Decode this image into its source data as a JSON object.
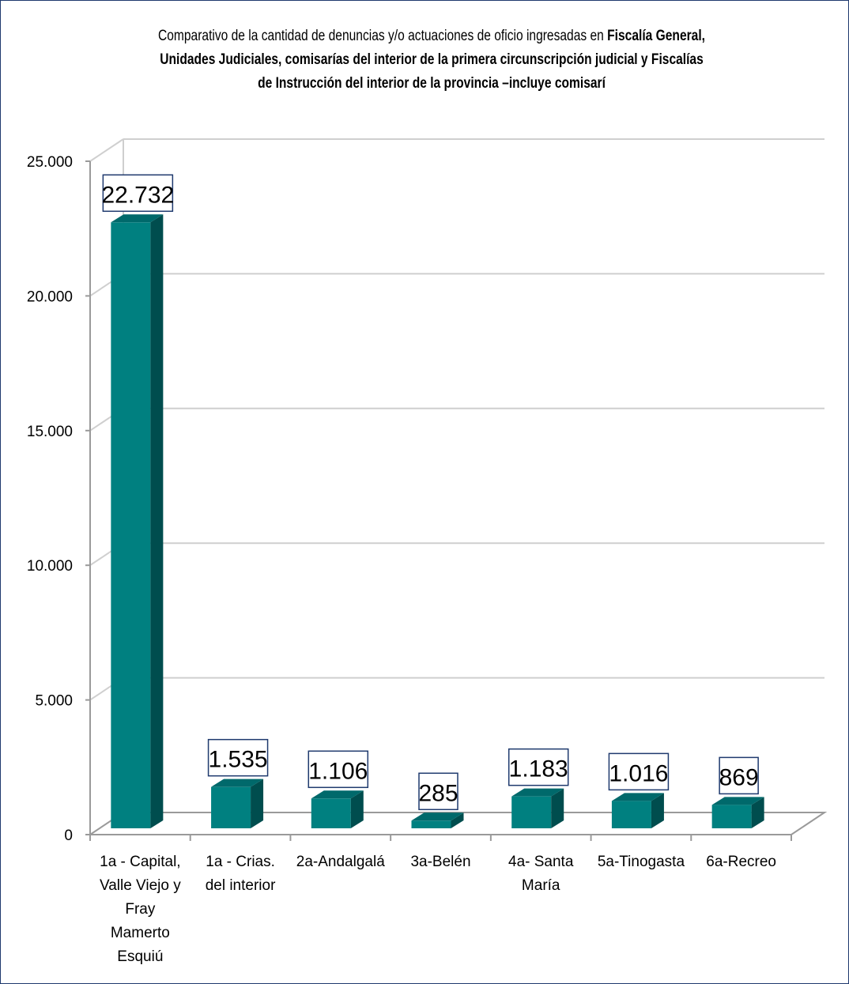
{
  "chart_data": {
    "type": "bar",
    "title_parts": [
      {
        "text": "Comparativo de la cantidad de denuncias y/o actuaciones de oficio ingresadas en ",
        "bold": false
      },
      {
        "text": "Fiscalía General, Unidades Judiciales, comisarías del interior de la primera circunscripción judicial y Fiscalías de Instrucción del interior de la provincia –incluye comisarí",
        "bold": true
      }
    ],
    "categories": [
      [
        "1a - Capital,",
        "Valle Viejo y",
        "Fray",
        "Mamerto",
        "Esquiú"
      ],
      [
        "1a - Crias.",
        "del interior"
      ],
      [
        "2a-Andalgalá"
      ],
      [
        "3a-Belén"
      ],
      [
        "4a- Santa",
        "María"
      ],
      [
        "5a-Tinogasta"
      ],
      [
        "6a-Recreo"
      ]
    ],
    "values": [
      22732,
      1535,
      1106,
      285,
      1183,
      1016,
      869
    ],
    "value_labels": [
      "22.732",
      "1.535",
      "1.106",
      "285",
      "1.183",
      "1.016",
      "869"
    ],
    "ylim": [
      0,
      25000
    ],
    "yticks": [
      0,
      5000,
      10000,
      15000,
      20000,
      25000
    ],
    "ytick_labels": [
      "0",
      "5.000",
      "10.000",
      "15.000",
      "20.000",
      "25.000"
    ],
    "grid": true,
    "legend": false,
    "xlabel": "",
    "ylabel": "",
    "colors": {
      "bar_front": "#008080",
      "bar_top": "#00696b",
      "bar_side": "#004d4e",
      "label_border": "#1f3a6e",
      "grid": "#cfcfcf",
      "axis": "#9a9a9a"
    }
  }
}
